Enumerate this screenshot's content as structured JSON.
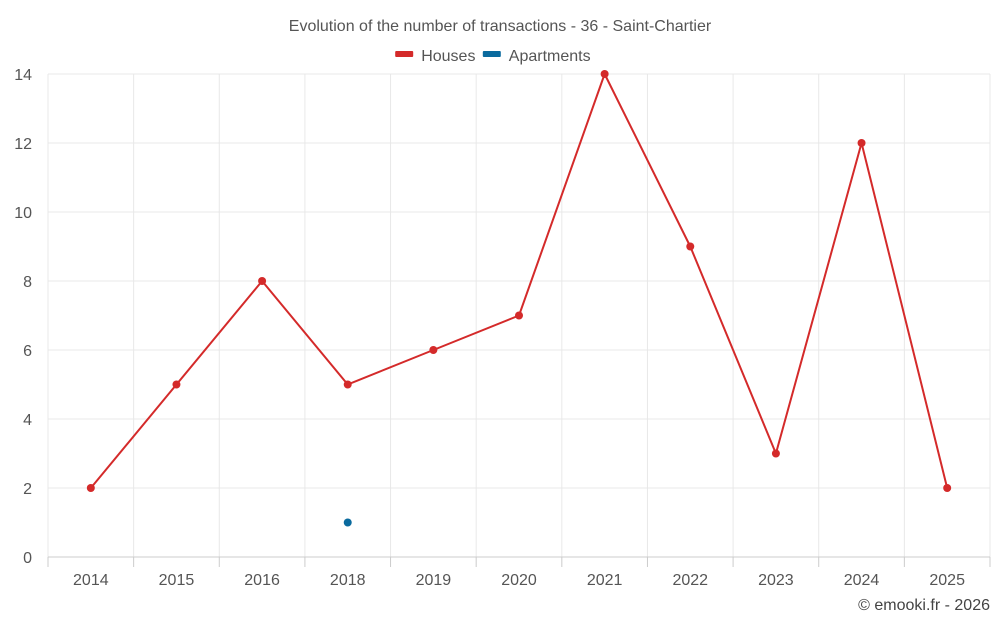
{
  "chart_data": {
    "type": "line",
    "title": "Evolution of the number of transactions - 36 - Saint-Chartier",
    "xlabel": "",
    "ylabel": "",
    "categories": [
      "2014",
      "2015",
      "2016",
      "2018",
      "2019",
      "2020",
      "2021",
      "2022",
      "2023",
      "2024",
      "2025"
    ],
    "ylim": [
      0,
      14
    ],
    "yticks": [
      0,
      2,
      4,
      6,
      8,
      10,
      12,
      14
    ],
    "grid": true,
    "legend_position": "top-center",
    "series": [
      {
        "name": "Houses",
        "color": "#d42a2a",
        "values": [
          2,
          5,
          8,
          5,
          6,
          7,
          14,
          9,
          3,
          12,
          2
        ]
      },
      {
        "name": "Apartments",
        "color": "#0a6a9e",
        "values": [
          null,
          null,
          null,
          1,
          null,
          null,
          null,
          null,
          null,
          null,
          null
        ]
      }
    ],
    "credit": "© emooki.fr - 2026"
  }
}
